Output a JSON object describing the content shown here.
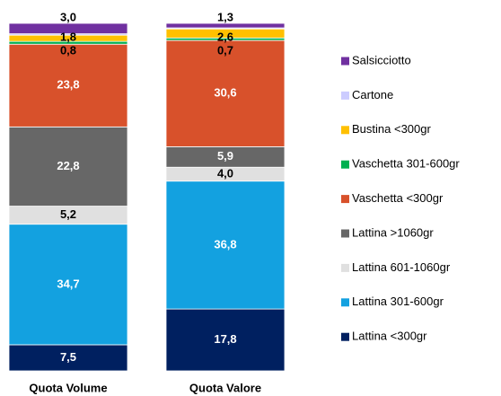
{
  "chart_data": {
    "type": "stacked_bar",
    "categories": [
      "Quota Volume",
      "Quota Valore"
    ],
    "series": [
      {
        "name": "Lattina <300gr",
        "color": "#002060",
        "values": [
          7.5,
          17.8
        ],
        "value_labels": [
          "7,5",
          "17,8"
        ]
      },
      {
        "name": "Lattina 301-600gr",
        "color": "#13a1e0",
        "values": [
          34.7,
          36.8
        ],
        "value_labels": [
          "34,7",
          "36,8"
        ]
      },
      {
        "name": "Lattina 601-1060gr",
        "color": "#e0e0e0",
        "values": [
          5.2,
          4.0
        ],
        "value_labels": [
          "5,2",
          "4,0"
        ]
      },
      {
        "name": "Lattina >1060gr",
        "color": "#676767",
        "values": [
          22.8,
          5.9
        ],
        "value_labels": [
          "22,8",
          "5,9"
        ]
      },
      {
        "name": "Vaschetta <300gr",
        "color": "#d8512b",
        "values": [
          23.8,
          30.6
        ],
        "value_labels": [
          "23,8",
          "30,6"
        ]
      },
      {
        "name": "Vaschetta 301-600gr",
        "color": "#00b050",
        "values": [
          0.8,
          0.7
        ],
        "value_labels": [
          "0,8",
          "0,7"
        ]
      },
      {
        "name": "Bustina <300gr",
        "color": "#ffc000",
        "values": [
          1.8,
          2.6
        ],
        "value_labels": [
          "1,8",
          "2,6"
        ]
      },
      {
        "name": "Cartone",
        "color": "#ccccff",
        "values": [
          0.4,
          0.3
        ],
        "value_labels": [
          null,
          null
        ]
      },
      {
        "name": "Salsicciotto",
        "color": "#7030a0",
        "values": [
          3.0,
          1.3
        ],
        "value_labels": [
          "3,0",
          "1,3"
        ]
      }
    ],
    "ylim": [
      0,
      100
    ]
  }
}
